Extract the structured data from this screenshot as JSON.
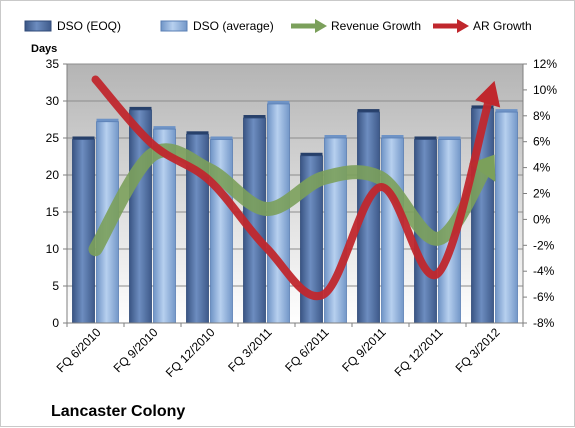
{
  "chart_data": {
    "type": "bar",
    "title": "Lancaster Colony",
    "ylabel": "Days",
    "ylim": [
      0,
      35
    ],
    "y_ticks": [
      "0",
      "5",
      "10",
      "15",
      "20",
      "25",
      "30",
      "35"
    ],
    "y2lim": [
      -8,
      12
    ],
    "y2_ticks": [
      "-8%",
      "-6%",
      "-4%",
      "-2%",
      "0%",
      "2%",
      "4%",
      "6%",
      "8%",
      "10%",
      "12%"
    ],
    "categories": [
      "FQ 6/2010",
      "FQ 9/2010",
      "FQ 12/2010",
      "FQ 3/2011",
      "FQ 6/2011",
      "FQ 9/2011",
      "FQ 12/2011",
      "FQ 3/2012"
    ],
    "series": [
      {
        "name": "DSO (EOQ)",
        "type": "bar",
        "axis": "left",
        "color": "#4f6fa3",
        "values": [
          24.8,
          28.8,
          25.5,
          27.7,
          22.6,
          28.5,
          24.8,
          29.0
        ]
      },
      {
        "name": "DSO (average)",
        "type": "bar",
        "axis": "left",
        "color": "#8fb4e3",
        "values": [
          27.2,
          26.2,
          24.8,
          29.6,
          25.0,
          25.0,
          24.8,
          28.5
        ]
      },
      {
        "name": "Revenue Growth",
        "type": "line",
        "axis": "right",
        "color": "#7ba05b",
        "values": [
          -2.3,
          5.0,
          3.8,
          0.8,
          3.2,
          3.2,
          -1.5,
          5.0
        ]
      },
      {
        "name": "AR Growth",
        "type": "line",
        "axis": "right",
        "color": "#c0272d",
        "values": [
          10.8,
          5.8,
          3.0,
          -2.2,
          -5.8,
          2.5,
          -4.2,
          10.7
        ]
      }
    ],
    "grid": true,
    "legend": "top"
  }
}
